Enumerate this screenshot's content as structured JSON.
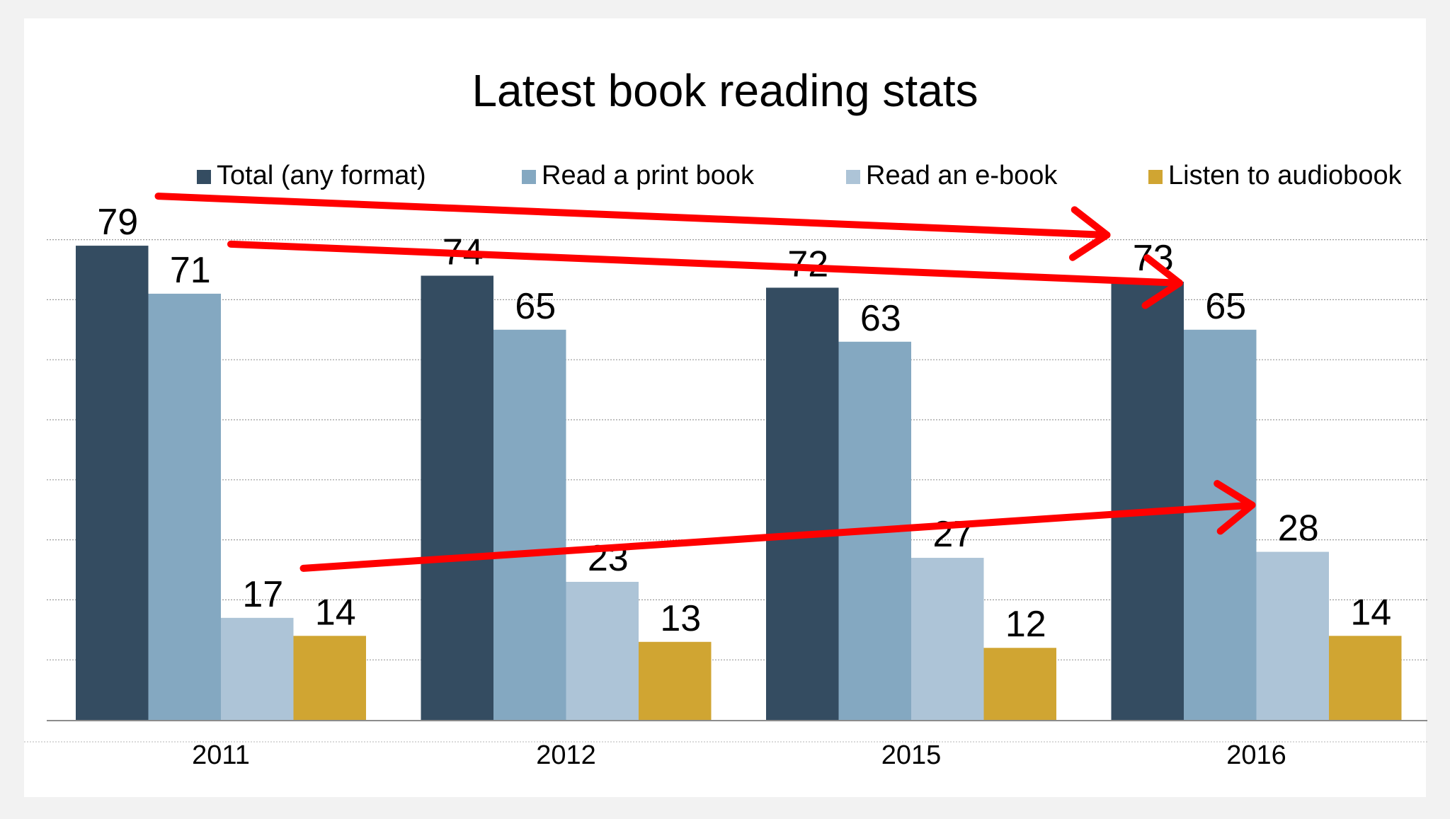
{
  "chart_data": {
    "type": "bar",
    "title": "Latest book reading stats",
    "categories": [
      "2011",
      "2012",
      "2015",
      "2016"
    ],
    "series": [
      {
        "name": "Total (any format)",
        "color": "#344c61",
        "values": [
          79,
          74,
          72,
          73
        ]
      },
      {
        "name": "Read a print book",
        "color": "#84a8c1",
        "values": [
          71,
          65,
          63,
          65
        ]
      },
      {
        "name": "Read an e-book",
        "color": "#adc4d7",
        "values": [
          17,
          23,
          27,
          28
        ]
      },
      {
        "name": "Listen to audiobook",
        "color": "#d0a532",
        "values": [
          14,
          13,
          12,
          14
        ]
      }
    ],
    "ylim": [
      0,
      80
    ],
    "ytick_step": 10,
    "grid": true,
    "legend_position": "top",
    "xlabel": "",
    "ylabel": "",
    "annotations": [
      {
        "type": "arrow",
        "color": "#ff0000",
        "from": {
          "category": "2011",
          "series": "Total (any format)"
        },
        "to": {
          "category": "2016",
          "series": "Total (any format)"
        }
      },
      {
        "type": "arrow",
        "color": "#ff0000",
        "from": {
          "category": "2011",
          "series": "Read a print book"
        },
        "to": {
          "category": "2016",
          "series": "Read a print book"
        }
      },
      {
        "type": "arrow",
        "color": "#ff0000",
        "from": {
          "category": "2011",
          "series": "Read an e-book"
        },
        "to": {
          "category": "2016",
          "series": "Read an e-book"
        }
      }
    ]
  }
}
